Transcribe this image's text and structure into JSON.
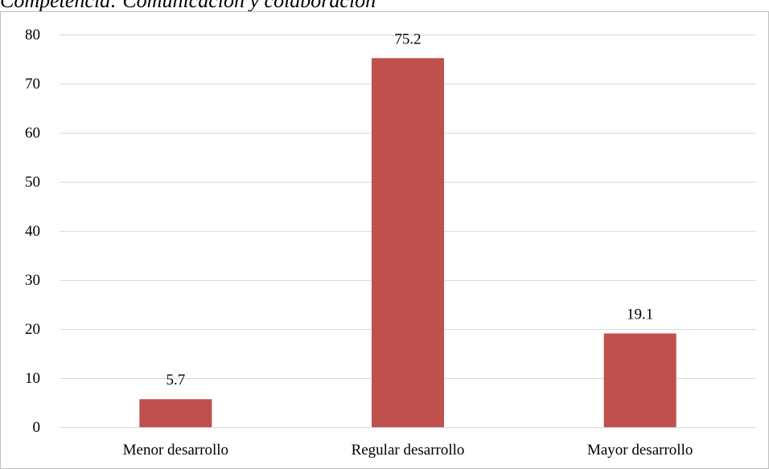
{
  "chart_data": {
    "type": "bar",
    "title": "Competencia: Comunicación y colaboración",
    "xlabel": "",
    "ylabel": "",
    "categories": [
      "Menor desarrollo",
      "Regular desarrollo",
      "Mayor desarrollo"
    ],
    "values": [
      5.7,
      75.2,
      19.1
    ],
    "value_labels": [
      "5.7",
      "75.2",
      "19.1"
    ],
    "ylim": [
      0,
      80
    ],
    "yticks": [
      0,
      10,
      20,
      30,
      40,
      50,
      60,
      70,
      80
    ],
    "grid": true,
    "legend": "none",
    "colors": {
      "bar": "#c0504d",
      "grid": "#d9d9d9",
      "frame": "#bfbfbf",
      "text": "#000000"
    }
  }
}
